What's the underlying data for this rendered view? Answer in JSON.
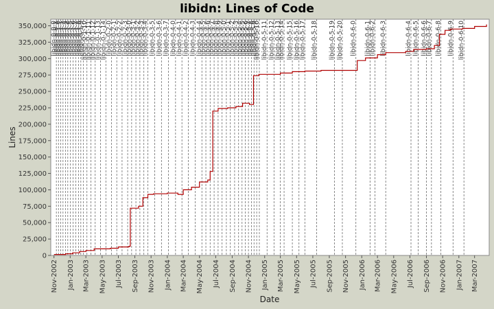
{
  "chart_data": {
    "type": "line",
    "title": "libidn: Lines of Code",
    "xlabel": "Date",
    "ylabel": "Lines",
    "x_tick_labels": [
      "Nov-2002",
      "Jan-2003",
      "Mar-2003",
      "May-2003",
      "Jul-2003",
      "Sep-2003",
      "Nov-2003",
      "Jan-2004",
      "Mar-2004",
      "May-2004",
      "Jul-2004",
      "Sep-2004",
      "Nov-2004",
      "Jan-2005",
      "Mar-2005",
      "May-2005",
      "Jul-2005",
      "Sep-2005",
      "Nov-2005",
      "Jan-2006",
      "Mar-2006",
      "May-2006",
      "Jul-2006",
      "Sep-2006",
      "Nov-2006",
      "Jan-2007",
      "Mar-2007"
    ],
    "y_tick_labels": [
      "0",
      "25,000",
      "50,000",
      "75,000",
      "100,000",
      "125,000",
      "150,000",
      "175,000",
      "200,000",
      "225,000",
      "250,000",
      "275,000",
      "300,000",
      "325,000",
      "350,000"
    ],
    "xlim": [
      "2002-10-20",
      "2007-04-25"
    ],
    "ylim": [
      0,
      360000
    ],
    "grid": false,
    "line_color": "#b00000",
    "series": [
      {
        "values": [
          [
            "2002-11-01",
            1500
          ],
          [
            "2002-12-15",
            2500
          ],
          [
            "2003-01-10",
            4000
          ],
          [
            "2003-02-05",
            6000
          ],
          [
            "2003-03-01",
            7500
          ],
          [
            "2003-04-01",
            10000
          ],
          [
            "2003-06-01",
            11000
          ],
          [
            "2003-07-01",
            13000
          ],
          [
            "2003-08-10",
            14000
          ],
          [
            "2003-08-15",
            72000
          ],
          [
            "2003-09-15",
            75000
          ],
          [
            "2003-10-01",
            88000
          ],
          [
            "2003-10-20",
            93000
          ],
          [
            "2003-11-10",
            94000
          ],
          [
            "2004-01-01",
            95000
          ],
          [
            "2004-02-10",
            93000
          ],
          [
            "2004-03-01",
            100000
          ],
          [
            "2004-04-01",
            104000
          ],
          [
            "2004-05-01",
            112000
          ],
          [
            "2004-06-01",
            115000
          ],
          [
            "2004-06-10",
            128000
          ],
          [
            "2004-06-20",
            220000
          ],
          [
            "2004-07-10",
            224000
          ],
          [
            "2004-08-15",
            225000
          ],
          [
            "2004-09-15",
            227000
          ],
          [
            "2004-10-10",
            232000
          ],
          [
            "2004-11-05",
            230000
          ],
          [
            "2004-11-20",
            274000
          ],
          [
            "2004-12-10",
            276000
          ],
          [
            "2005-02-01",
            276000
          ],
          [
            "2005-03-01",
            278000
          ],
          [
            "2005-04-15",
            280000
          ],
          [
            "2005-06-01",
            281000
          ],
          [
            "2005-08-01",
            282000
          ],
          [
            "2005-12-10",
            282000
          ],
          [
            "2005-12-15",
            297000
          ],
          [
            "2006-01-15",
            301000
          ],
          [
            "2006-03-01",
            306000
          ],
          [
            "2006-04-01",
            309000
          ],
          [
            "2006-06-15",
            311000
          ],
          [
            "2006-07-15",
            314000
          ],
          [
            "2006-09-01",
            315000
          ],
          [
            "2006-10-01",
            320000
          ],
          [
            "2006-10-20",
            337000
          ],
          [
            "2006-11-10",
            343000
          ],
          [
            "2006-12-01",
            345000
          ],
          [
            "2007-01-15",
            346000
          ],
          [
            "2007-03-01",
            349000
          ],
          [
            "2007-04-15",
            352000
          ]
        ]
      }
    ],
    "version_tags": [
      {
        "date": "2002-11-10",
        "label": "libidn-0-0-0"
      },
      {
        "date": "2002-11-18",
        "label": "libidn-0-0-1"
      },
      {
        "date": "2002-11-26",
        "label": "libidn-0-1-0"
      },
      {
        "date": "2002-12-05",
        "label": "libidn-0-1-1"
      },
      {
        "date": "2002-12-14",
        "label": "libidn-0-1-2"
      },
      {
        "date": "2002-12-23",
        "label": "libidn-0-1-3"
      },
      {
        "date": "2003-01-02",
        "label": "libidn-0-1-4"
      },
      {
        "date": "2003-01-12",
        "label": "libidn-0-1-5"
      },
      {
        "date": "2003-01-22",
        "label": "libidn-0-1-6"
      },
      {
        "date": "2003-02-01",
        "label": "libidn-0-1-7"
      },
      {
        "date": "2003-02-10",
        "label": "libidn-0-1-8"
      },
      {
        "date": "2003-02-20",
        "label": "libidn-0-1-9"
      },
      {
        "date": "2003-03-05",
        "label": "libidn-0-1-10"
      },
      {
        "date": "2003-03-20",
        "label": "libidn-0-1-11"
      },
      {
        "date": "2003-04-05",
        "label": "libidn-0-1-12"
      },
      {
        "date": "2003-04-25",
        "label": "libidn-0-1-13"
      },
      {
        "date": "2003-05-15",
        "label": "libidn-0-1-14"
      },
      {
        "date": "2003-06-05",
        "label": "libidn-0-2-0"
      },
      {
        "date": "2003-06-25",
        "label": "libidn-0-2-1"
      },
      {
        "date": "2003-07-15",
        "label": "libidn-0-2-2"
      },
      {
        "date": "2003-08-05",
        "label": "libidn-0-2-3"
      },
      {
        "date": "2003-08-20",
        "label": "libidn-0-3-0"
      },
      {
        "date": "2003-09-05",
        "label": "libidn-0-3-1"
      },
      {
        "date": "2003-09-20",
        "label": "libidn-0-3-2"
      },
      {
        "date": "2003-10-05",
        "label": "libidn-0-3-3"
      },
      {
        "date": "2003-10-20",
        "label": "libidn-0-3-4"
      },
      {
        "date": "2003-11-15",
        "label": "libidn-0-3-5"
      },
      {
        "date": "2003-12-10",
        "label": "libidn-0-3-6"
      },
      {
        "date": "2004-01-05",
        "label": "libidn-0-3-7"
      },
      {
        "date": "2004-02-01",
        "label": "libidn-0-4-0"
      },
      {
        "date": "2004-02-25",
        "label": "libidn-0-4-1"
      },
      {
        "date": "2004-03-20",
        "label": "libidn-0-4-2"
      },
      {
        "date": "2004-04-15",
        "label": "libidn-0-4-3"
      },
      {
        "date": "2004-05-10",
        "label": "libidn-0-4-4"
      },
      {
        "date": "2004-05-25",
        "label": "libidn-0-4-5"
      },
      {
        "date": "2004-06-10",
        "label": "libidn-0-4-6"
      },
      {
        "date": "2004-06-25",
        "label": "libidn-0-4-7"
      },
      {
        "date": "2004-07-10",
        "label": "libidn-0-4-8"
      },
      {
        "date": "2004-07-25",
        "label": "libidn-0-4-9"
      },
      {
        "date": "2004-08-10",
        "label": "libidn-0-5-0"
      },
      {
        "date": "2004-08-25",
        "label": "libidn-0-5-1"
      },
      {
        "date": "2004-09-10",
        "label": "libidn-0-5-2"
      },
      {
        "date": "2004-09-25",
        "label": "libidn-0-5-3"
      },
      {
        "date": "2004-10-08",
        "label": "libidn-0-5-4"
      },
      {
        "date": "2004-10-20",
        "label": "libidn-0-5-5"
      },
      {
        "date": "2004-11-01",
        "label": "libidn-0-5-6"
      },
      {
        "date": "2004-11-12",
        "label": "libidn-0-5-7"
      },
      {
        "date": "2004-11-22",
        "label": "libidn-0-5-8"
      },
      {
        "date": "2004-12-02",
        "label": "libidn-0-5-9"
      },
      {
        "date": "2004-12-12",
        "label": "libidn-0-5-10"
      },
      {
        "date": "2005-01-10",
        "label": "libidn-0-5-11"
      },
      {
        "date": "2005-02-05",
        "label": "libidn-0-5-12"
      },
      {
        "date": "2005-03-01",
        "label": "libidn-0-5-13"
      },
      {
        "date": "2005-03-15",
        "label": "libidn-0-5-14"
      },
      {
        "date": "2005-04-15",
        "label": "libidn-0-5-15"
      },
      {
        "date": "2005-05-10",
        "label": "libidn-0-5-16"
      },
      {
        "date": "2005-06-01",
        "label": "libidn-0-5-17"
      },
      {
        "date": "2005-07-15",
        "label": "libidn-0-5-18"
      },
      {
        "date": "2005-09-20",
        "label": "libidn-0-5-19"
      },
      {
        "date": "2005-10-20",
        "label": "libidn-0-5-20"
      },
      {
        "date": "2005-12-10",
        "label": "libidn-0-6-0"
      },
      {
        "date": "2006-02-01",
        "label": "libidn-0-6-1"
      },
      {
        "date": "2006-02-20",
        "label": "libidn-0-6-2"
      },
      {
        "date": "2006-04-01",
        "label": "libidn-0-6-3"
      },
      {
        "date": "2006-07-05",
        "label": "libidn-0-6-4"
      },
      {
        "date": "2006-08-01",
        "label": "libidn-0-6-5"
      },
      {
        "date": "2006-09-01",
        "label": "libidn-0-6-6"
      },
      {
        "date": "2006-09-20",
        "label": "libidn-0-6-7"
      },
      {
        "date": "2006-10-25",
        "label": "libidn-0-6-8"
      },
      {
        "date": "2006-12-10",
        "label": "libidn-0-6-9"
      },
      {
        "date": "2007-01-20",
        "label": "libidn-0-6-10"
      }
    ]
  }
}
